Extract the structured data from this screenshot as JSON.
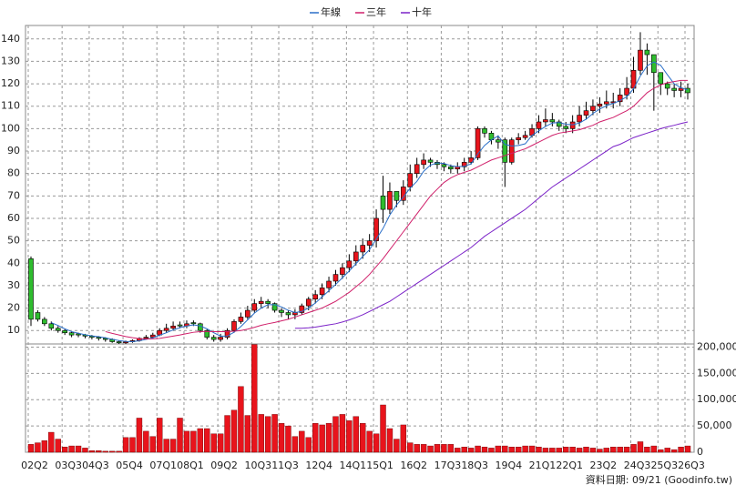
{
  "chart_data": [
    {
      "type": "candlestick",
      "categories": [
        "02Q2",
        null,
        null,
        null,
        null,
        "03Q3",
        null,
        null,
        null,
        "04Q3",
        null,
        null,
        null,
        null,
        "05Q4",
        null,
        null,
        null,
        null,
        "07Q1",
        null,
        null,
        null,
        "08Q1",
        null,
        null,
        null,
        null,
        "09Q2",
        null,
        null,
        null,
        null,
        "10Q3",
        null,
        null,
        null,
        "11Q3",
        null,
        null,
        null,
        null,
        "12Q4",
        null,
        null,
        null,
        null,
        "14Q1",
        null,
        null,
        null,
        "15Q1",
        null,
        null,
        null,
        null,
        "16Q2",
        null,
        null,
        null,
        null,
        "17Q3",
        null,
        null,
        null,
        "18Q3",
        null,
        null,
        null,
        null,
        "19Q4",
        null,
        null,
        null,
        null,
        "21Q1",
        null,
        null,
        null,
        "22Q1",
        null,
        null,
        null,
        null,
        "23Q2",
        null,
        null,
        null,
        null,
        "24Q3",
        null,
        null,
        null,
        "25Q3",
        null,
        null,
        null,
        "26Q3"
      ],
      "open": [
        42,
        18,
        15,
        13,
        11,
        10,
        9,
        8.5,
        8,
        7.5,
        7,
        6.5,
        6,
        5,
        4.5,
        5,
        5.5,
        6.5,
        7,
        8,
        10,
        11,
        12.5,
        12,
        13.5,
        13,
        10,
        7,
        6,
        7,
        10,
        14,
        16,
        19,
        22,
        23,
        22,
        19,
        18,
        17,
        18,
        21,
        24,
        26,
        29,
        32,
        35,
        38,
        41,
        45,
        48,
        50,
        70,
        64,
        72,
        68,
        74,
        80,
        84,
        86,
        85,
        84,
        83,
        82,
        83,
        85,
        87,
        100,
        98,
        95,
        95,
        85,
        95,
        96,
        97,
        100,
        103,
        104,
        103,
        101,
        100,
        103,
        106,
        108,
        110,
        111,
        111.5,
        112,
        115,
        118,
        126,
        135,
        133,
        125,
        120,
        118,
        117,
        118
      ],
      "high": [
        43,
        19,
        16,
        14,
        12,
        10.5,
        9.5,
        9,
        8.5,
        8,
        7.5,
        7,
        6.5,
        5.5,
        5.5,
        6,
        7,
        8,
        9,
        11,
        13,
        14,
        14,
        14.5,
        14.5,
        13.5,
        10.5,
        8,
        8.5,
        11,
        15,
        18,
        21,
        24,
        25,
        24,
        22.5,
        20,
        19,
        19.5,
        22,
        25,
        28,
        31,
        34,
        37,
        40,
        44,
        48,
        51,
        53,
        64,
        79,
        76,
        72,
        77,
        84,
        87,
        89,
        87,
        86,
        85,
        84,
        85,
        87,
        90,
        101,
        101,
        99,
        97,
        96,
        96,
        98,
        99,
        102,
        106,
        109,
        107,
        104,
        103,
        106,
        110,
        112,
        113,
        114,
        117,
        116,
        118,
        123,
        132,
        143,
        138,
        133,
        124,
        121,
        120,
        121,
        120
      ],
      "low": [
        12,
        14,
        12,
        10,
        9,
        8,
        7,
        7,
        6.5,
        6,
        5.5,
        5,
        4.5,
        4,
        4,
        4.5,
        5,
        6,
        6.5,
        7.5,
        9,
        10,
        11,
        11,
        12,
        9,
        6,
        5,
        5,
        6,
        9,
        13,
        15,
        18,
        20,
        20,
        18,
        16,
        15,
        15,
        17,
        19,
        22,
        24,
        27,
        30,
        33,
        36,
        39,
        42,
        45,
        47,
        58,
        62,
        65,
        66,
        72,
        78,
        82,
        83,
        82,
        81,
        80,
        80,
        81,
        84,
        86,
        96,
        93,
        91,
        74,
        84,
        93,
        95,
        96,
        98,
        101,
        101,
        99,
        98,
        98,
        101,
        104,
        106,
        107,
        109,
        109,
        110,
        113,
        116,
        124,
        124,
        108,
        115,
        115,
        114,
        114,
        113
      ],
      "close": [
        15,
        15,
        13,
        11,
        10,
        9,
        8,
        8,
        7.5,
        7,
        6.5,
        6,
        5,
        4.5,
        5,
        5.5,
        6.5,
        7,
        8,
        10,
        11,
        12,
        12,
        13,
        13,
        10,
        7,
        6,
        7,
        10,
        14,
        16,
        19,
        22,
        23,
        22,
        19,
        18,
        17,
        18,
        21,
        24,
        26,
        29,
        32,
        35,
        38,
        41,
        45,
        48,
        50,
        60,
        64,
        72,
        68,
        74,
        80,
        84,
        86,
        85,
        84,
        83,
        82,
        83,
        85,
        87,
        100,
        98,
        95,
        94,
        85,
        95,
        96,
        97,
        100,
        103,
        104,
        103,
        101,
        100,
        103,
        106,
        108,
        110,
        111,
        112,
        112,
        115,
        118,
        126,
        135,
        133,
        125,
        120,
        118,
        117,
        118,
        116
      ],
      "up_color": "#e8141c",
      "down_color": "#2ebd2e",
      "series": [
        {
          "name": "年線",
          "color": "#2a6fc9",
          "values": [
            null,
            null,
            null,
            13.5,
            12.25,
            10.75,
            9.5,
            8.75,
            8.1,
            7.6,
            7.25,
            6.75,
            6.1,
            5.5,
            5.1,
            5,
            5.4,
            6,
            6.75,
            7.9,
            9,
            10.25,
            11.25,
            12,
            12.5,
            12,
            10.75,
            9,
            7.5,
            7.5,
            9.25,
            11.75,
            14.75,
            17.75,
            20,
            21.5,
            21.5,
            20.5,
            19,
            18,
            18.5,
            20,
            22.25,
            25,
            27.75,
            30.5,
            33.5,
            36.5,
            39.75,
            43,
            46,
            50.75,
            55.5,
            61.5,
            66,
            69.5,
            73.5,
            76.5,
            81,
            83.75,
            84.75,
            84.5,
            83.5,
            83,
            83.25,
            84.25,
            88.75,
            92.5,
            95,
            96.75,
            93,
            92.25,
            92.5,
            93.25,
            97,
            99,
            101,
            102.5,
            102.75,
            102,
            101.75,
            102.5,
            104.25,
            106.75,
            108.75,
            110.25,
            111.25,
            112.5,
            114.25,
            117.75,
            123.5,
            128,
            129.75,
            128.25,
            124,
            120,
            118.25,
            117.25
          ]
        },
        {
          "name": "三年",
          "color": "#d01f6a",
          "values": [
            null,
            null,
            null,
            null,
            null,
            null,
            null,
            null,
            null,
            null,
            null,
            9.5,
            8.7,
            8,
            7.3,
            6.8,
            6.4,
            6.2,
            6.3,
            6.5,
            7,
            7.5,
            8,
            8.6,
            9.2,
            9.5,
            9.6,
            9.5,
            9.5,
            9.5,
            9.7,
            10,
            10.6,
            11.4,
            12.3,
            13,
            13.6,
            14.3,
            15,
            16,
            17,
            18,
            19,
            20,
            21.5,
            23,
            25,
            27,
            29.5,
            32,
            35,
            38.5,
            42,
            46,
            50,
            54,
            58,
            62,
            66,
            70,
            73,
            76,
            78,
            79.5,
            80.5,
            81.5,
            83,
            84.5,
            86,
            87,
            88,
            89,
            90,
            91,
            92.5,
            94,
            95.5,
            97,
            98,
            98.5,
            99,
            99.5,
            100.5,
            101.5,
            103,
            104,
            105,
            106.5,
            108,
            110,
            113,
            116,
            118,
            119.5,
            120.5,
            121,
            121.5,
            121.5
          ]
        },
        {
          "name": "十年",
          "color": "#7b22c8",
          "values": [
            null,
            null,
            null,
            null,
            null,
            null,
            null,
            null,
            null,
            null,
            null,
            null,
            null,
            null,
            null,
            null,
            null,
            null,
            null,
            null,
            null,
            null,
            null,
            null,
            null,
            null,
            null,
            null,
            null,
            null,
            null,
            null,
            null,
            null,
            null,
            null,
            null,
            null,
            null,
            11,
            11,
            11.2,
            11.5,
            12,
            12.5,
            13,
            13.8,
            14.7,
            15.8,
            17,
            18.5,
            20,
            21.5,
            23,
            25,
            27,
            29,
            31,
            33,
            35,
            37,
            39,
            41,
            43,
            45,
            47,
            49.5,
            52,
            54,
            56,
            58,
            60,
            62,
            64,
            66.5,
            69,
            71.5,
            74,
            76,
            78,
            80,
            82,
            84,
            86,
            88,
            90,
            92,
            93,
            94.5,
            96,
            97,
            98,
            99,
            100,
            100.8,
            101.5,
            102.3,
            103
          ]
        }
      ],
      "ylim": [
        4,
        146
      ],
      "yticks": [
        10,
        20,
        30,
        40,
        50,
        60,
        70,
        80,
        90,
        100,
        110,
        120,
        130,
        140
      ],
      "grid": true,
      "legend": "top"
    },
    {
      "type": "bar",
      "values": [
        15000,
        18000,
        22000,
        38000,
        25000,
        10000,
        12000,
        12000,
        8000,
        3000,
        3000,
        2000,
        2000,
        2000,
        28000,
        28000,
        65000,
        40000,
        30000,
        65000,
        25000,
        25000,
        65000,
        40000,
        40000,
        45000,
        45000,
        35000,
        35000,
        70000,
        80000,
        125000,
        70000,
        205000,
        72000,
        68000,
        72000,
        55000,
        50000,
        30000,
        40000,
        28000,
        55000,
        52000,
        55000,
        68000,
        72000,
        60000,
        68000,
        55000,
        40000,
        35000,
        90000,
        45000,
        25000,
        52000,
        18000,
        15000,
        15000,
        12000,
        15000,
        15000,
        15000,
        8000,
        10000,
        8000,
        12000,
        10000,
        8000,
        12000,
        12000,
        10000,
        10000,
        12000,
        12000,
        10000,
        8000,
        8000,
        8000,
        10000,
        10000,
        8000,
        10000,
        8000,
        6000,
        8000,
        10000,
        10000,
        10000,
        15000,
        20000,
        10000,
        12000,
        5000,
        8000,
        5000,
        10000,
        12000
      ],
      "color": "#e8141c",
      "ylim": [
        0,
        206000
      ],
      "yticks": [
        0,
        {
          "value": 50000,
          "label": "50,000"
        },
        {
          "value": 100000,
          "label": "100,000"
        },
        {
          "value": 150000,
          "label": "150,000"
        },
        {
          "value": 200000,
          "label": "200,000"
        }
      ],
      "grid": true,
      "footnote": "資料日期: 09/21 (Goodinfo.tw)"
    }
  ]
}
